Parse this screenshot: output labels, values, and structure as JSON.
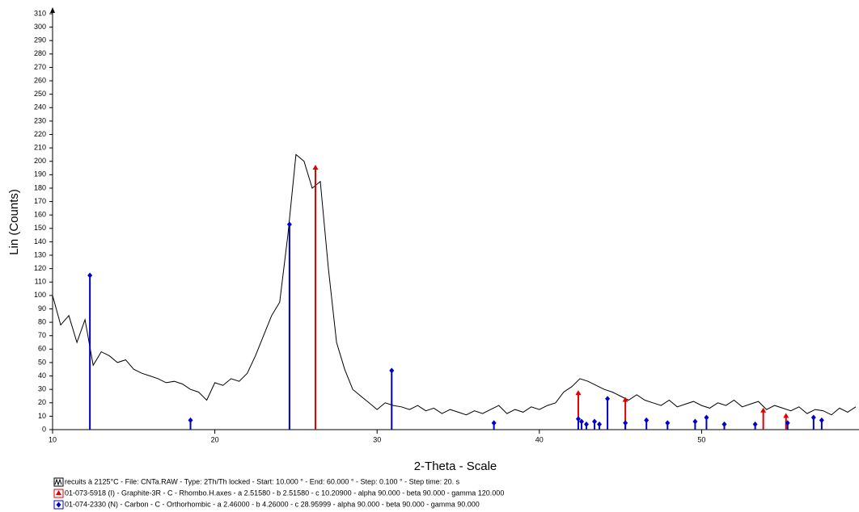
{
  "chart_data": {
    "type": "line",
    "x_label": "2-Theta - Scale",
    "y_label": "Lin (Counts)",
    "xlim": [
      10,
      59.7
    ],
    "ylim": [
      0,
      310
    ],
    "xticks": [
      10,
      20,
      30,
      40,
      50
    ],
    "yticks": [
      0,
      10,
      20,
      30,
      40,
      50,
      60,
      70,
      80,
      90,
      100,
      110,
      120,
      130,
      140,
      150,
      160,
      170,
      180,
      190,
      200,
      210,
      220,
      230,
      240,
      250,
      260,
      270,
      280,
      290,
      300,
      310
    ],
    "x": [
      10,
      10.5,
      11,
      11.5,
      12,
      12.5,
      13,
      13.5,
      14,
      14.5,
      15,
      15.5,
      16,
      16.5,
      17,
      17.5,
      18,
      18.5,
      19,
      19.5,
      20,
      20.5,
      21,
      21.5,
      22,
      22.5,
      23,
      23.5,
      24,
      24.5,
      25,
      25.5,
      26,
      26.5,
      27,
      27.5,
      28,
      28.5,
      29,
      29.5,
      30,
      30.5,
      31,
      31.5,
      32,
      32.5,
      33,
      33.5,
      34,
      34.5,
      35,
      35.5,
      36,
      36.5,
      37,
      37.5,
      38,
      38.5,
      39,
      39.5,
      40,
      40.5,
      41,
      41.5,
      42,
      42.5,
      43,
      43.5,
      44,
      44.5,
      45,
      45.5,
      46,
      46.5,
      47,
      47.5,
      48,
      48.5,
      49,
      49.5,
      50,
      50.5,
      51,
      51.5,
      52,
      52.5,
      53,
      53.5,
      54,
      54.5,
      55,
      55.5,
      56,
      56.5,
      57,
      57.5,
      58,
      58.5,
      59,
      59.5
    ],
    "series": [
      {
        "name": "recuits à 2125°C - File: CNTa.RAW - Type: 2Th/Th locked - Start: 10.000 ° - End: 60.000 ° - Step: 0.100 ° - Step time: 20. s",
        "color": "#000000",
        "values": [
          100,
          78,
          85,
          65,
          82,
          48,
          58,
          55,
          50,
          52,
          45,
          42,
          40,
          38,
          35,
          36,
          34,
          30,
          28,
          22,
          35,
          33,
          38,
          36,
          42,
          55,
          70,
          85,
          95,
          145,
          205,
          200,
          180,
          185,
          120,
          65,
          45,
          30,
          25,
          20,
          15,
          20,
          18,
          17,
          15,
          18,
          14,
          16,
          12,
          15,
          13,
          11,
          14,
          12,
          15,
          18,
          12,
          15,
          13,
          17,
          15,
          18,
          20,
          28,
          32,
          38,
          36,
          33,
          30,
          28,
          25,
          22,
          26,
          22,
          20,
          18,
          22,
          17,
          19,
          21,
          18,
          16,
          20,
          18,
          22,
          17,
          19,
          21,
          15,
          18,
          16,
          14,
          17,
          12,
          15,
          14,
          11,
          16,
          13,
          17
        ]
      }
    ],
    "patterns": [
      {
        "name": "01-073-5918 (I) - Graphite-3R - C - Rhombo.H.axes - a 2.51580 - b 2.51580 - c 10.20900 - alpha 90.000 - beta 90.000 - gamma 120.000",
        "color": "#e00000",
        "marker": "triangle",
        "x": [
          26.2,
          42.4,
          45.3,
          53.8,
          55.2
        ],
        "values": [
          195,
          27,
          22,
          14,
          10
        ]
      },
      {
        "name": "01-074-2330 (N) - Carbon - C - Orthorhombic - a 2.46000 - b 4.26000 - c 28.95999 - alpha 90.000 - beta 90.000 - gamma 90.000",
        "color": "#0000cc",
        "marker": "diamond",
        "x": [
          12.3,
          18.5,
          24.6,
          30.9,
          37.2,
          42.4,
          42.6,
          42.9,
          43.4,
          43.7,
          44.2,
          45.3,
          46.6,
          47.9,
          49.6,
          50.3,
          51.4,
          53.3,
          55.3,
          56.9,
          57.4
        ],
        "values": [
          115,
          7,
          153,
          44,
          5,
          8,
          6,
          4,
          6,
          4,
          23,
          5,
          7,
          5,
          6,
          9,
          4,
          4,
          5,
          9,
          7
        ]
      }
    ]
  }
}
